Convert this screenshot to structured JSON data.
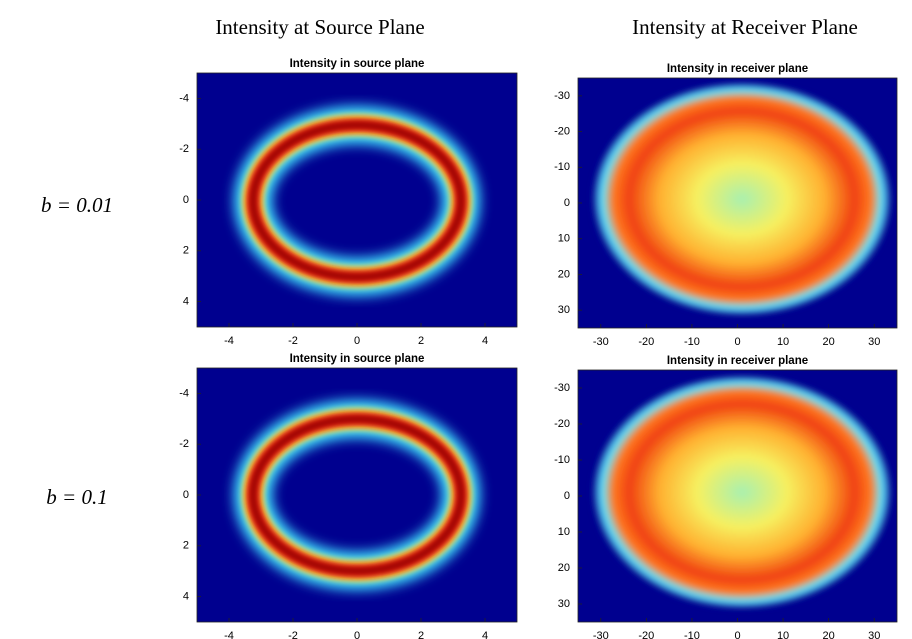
{
  "column_titles": [
    "Intensity at Source Plane",
    "Intensity at Receiver Plane"
  ],
  "row_labels": [
    "b = 0.01",
    "b = 0.1"
  ],
  "chart_data": [
    {
      "type": "image",
      "title": "Intensity in source plane",
      "xlim": [
        -5,
        5
      ],
      "ylim": [
        -5,
        5
      ],
      "xticks": [
        -4,
        -2,
        0,
        2,
        4
      ],
      "yticks": [
        -4,
        -2,
        0,
        2,
        4
      ],
      "y_reversed": true
    },
    {
      "type": "image",
      "title": "Intensity in receiver plane",
      "xlim": [
        -35,
        35
      ],
      "ylim": [
        -35,
        35
      ],
      "xticks": [
        -30,
        -20,
        -10,
        0,
        10,
        20,
        30
      ],
      "yticks": [
        -30,
        -20,
        -10,
        0,
        10,
        20,
        30
      ],
      "y_reversed": true
    },
    {
      "type": "image",
      "title": "Intensity in source plane",
      "xlim": [
        -5,
        5
      ],
      "ylim": [
        -5,
        5
      ],
      "xticks": [
        -4,
        -2,
        0,
        2,
        4
      ],
      "yticks": [
        -4,
        -2,
        0,
        2,
        4
      ],
      "y_reversed": true
    },
    {
      "type": "image",
      "title": "Intensity in receiver plane",
      "xlim": [
        -35,
        35
      ],
      "ylim": [
        -35,
        35
      ],
      "xticks": [
        -30,
        -20,
        -10,
        0,
        10,
        20,
        30
      ],
      "yticks": [
        -30,
        -20,
        -10,
        0,
        10,
        20,
        30
      ],
      "y_reversed": true
    }
  ]
}
